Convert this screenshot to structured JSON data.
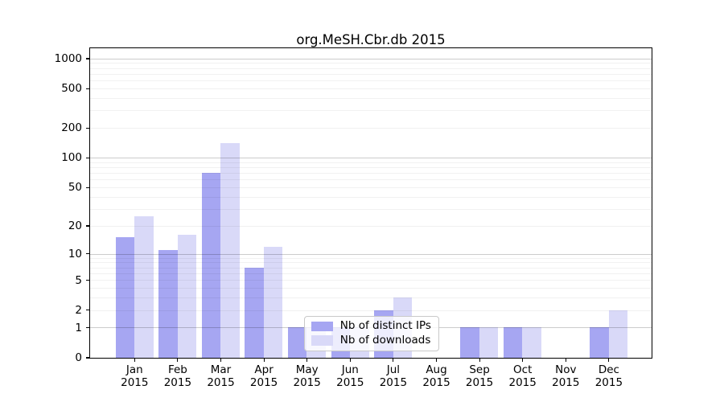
{
  "title": "org.MeSH.Cbr.db 2015",
  "chart_data": {
    "type": "bar",
    "title": "org.MeSH.Cbr.db 2015",
    "categories": [
      "Jan",
      "Feb",
      "Mar",
      "Apr",
      "May",
      "Jun",
      "Jul",
      "Aug",
      "Sep",
      "Oct",
      "Nov",
      "Dec"
    ],
    "category_year": "2015",
    "series": [
      {
        "name": "Nb of distinct IPs",
        "color": "#a6a6f2",
        "values": [
          15,
          11,
          70,
          7,
          1,
          1,
          2,
          0,
          1,
          1,
          0,
          1
        ]
      },
      {
        "name": "Nb of downloads",
        "color": "#d9d9f8",
        "values": [
          25,
          16,
          140,
          12,
          1,
          1,
          3,
          0,
          1,
          1,
          0,
          2
        ]
      }
    ],
    "y_axis": {
      "scale": "log1p",
      "tick_labels": [
        0,
        1,
        2,
        5,
        10,
        20,
        50,
        100,
        200,
        500,
        1000
      ],
      "major_gridlines": [
        1,
        10,
        100,
        1000
      ],
      "minor_gridlines": [
        2,
        3,
        4,
        5,
        6,
        7,
        8,
        9,
        20,
        30,
        40,
        50,
        60,
        70,
        80,
        90,
        200,
        300,
        400,
        500,
        600,
        700,
        800,
        900
      ],
      "ylim": [
        0,
        1265
      ]
    },
    "legend": {
      "position": "lower-center-left",
      "entries": [
        "Nb of distinct IPs",
        "Nb of downloads"
      ]
    },
    "grid": "horizontal",
    "colors": {
      "distinct_ips": "#a6a6f2",
      "downloads": "#d9d9f8",
      "grid_major": "#cccccc",
      "grid_minor": "#f0f0f0",
      "spine": "#000000",
      "background": "#ffffff"
    }
  }
}
